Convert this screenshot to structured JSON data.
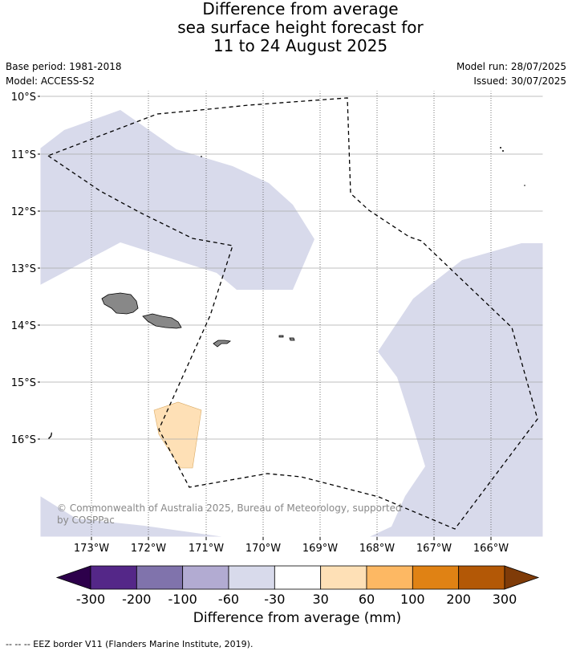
{
  "title": {
    "line1": "Difference from average",
    "line2": "sea surface height forecast for",
    "line3": "11 to 24 August 2025"
  },
  "meta": {
    "base_period": "Base period: 1981-2018",
    "model": "Model: ACCESS-S2",
    "model_run": "Model run: 28/07/2025",
    "issued": "Issued: 30/07/2025"
  },
  "map": {
    "lat_labels": [
      "10°S",
      "11°S",
      "12°S",
      "13°S",
      "14°S",
      "15°S",
      "16°S"
    ],
    "lon_labels": [
      "173°W",
      "172°W",
      "171°W",
      "170°W",
      "169°W",
      "168°W",
      "167°W",
      "166°W"
    ],
    "land_color": "#888888",
    "eez_style": "dashed black"
  },
  "copyright": "© Commonwealth of Australia 2025, Bureau of Meteorology, supported by COSPPac",
  "colorbar": {
    "title": "Difference from average (mm)",
    "ticks": [
      "-300",
      "-200",
      "-100",
      "-60",
      "-30",
      "30",
      "60",
      "100",
      "200",
      "300"
    ],
    "colors": [
      "#2d004b",
      "#542788",
      "#8073ac",
      "#b2abd2",
      "#d8daeb",
      "#ffffff",
      "#fee0b6",
      "#fdb863",
      "#e08214",
      "#b35806",
      "#7f3b08"
    ]
  },
  "footer": "-- -- -- EEZ border V11 (Flanders Marine Institute, 2019)."
}
